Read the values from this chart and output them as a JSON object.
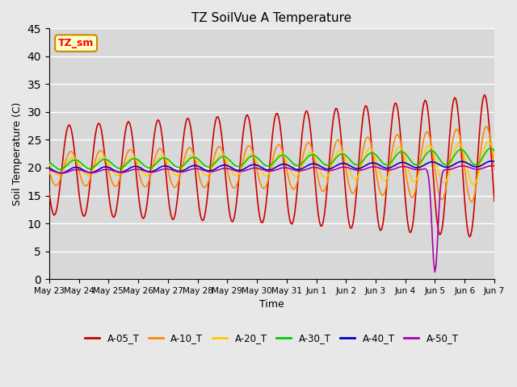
{
  "title": "TZ SoilVue A Temperature",
  "xlabel": "Time",
  "ylabel": "Soil Temperature (C)",
  "ylim": [
    0,
    45
  ],
  "yticks": [
    0,
    5,
    10,
    15,
    20,
    25,
    30,
    35,
    40,
    45
  ],
  "background_color": "#e8e8e8",
  "plot_bg_color": "#d8d8d8",
  "series_colors": {
    "A-05_T": "#cc0000",
    "A-10_T": "#ff8800",
    "A-20_T": "#ffcc00",
    "A-30_T": "#00cc00",
    "A-40_T": "#0000cc",
    "A-50_T": "#aa00aa"
  },
  "legend_label": "TZ_sm",
  "legend_box_color": "#ffffcc",
  "legend_box_edge": "#cc8800"
}
